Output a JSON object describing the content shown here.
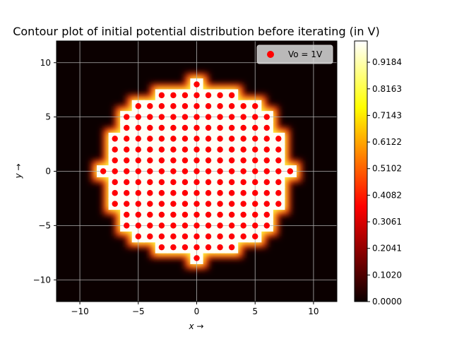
{
  "chart_data": {
    "type": "heatmap",
    "title": "Contour plot of initial potential distribution before iterating (in V)",
    "xlabel": "x →",
    "ylabel": "y →",
    "xlim": [
      -12,
      12
    ],
    "ylim": [
      -12,
      12
    ],
    "xticks": [
      -10,
      -5,
      0,
      5,
      10
    ],
    "yticks": [
      -10,
      -5,
      0,
      5,
      10
    ],
    "grid": true,
    "colormap": "hot",
    "colorbar": {
      "min": 0.0,
      "max": 1.0,
      "ticks": [
        "0.0000",
        "0.1020",
        "0.2041",
        "0.3061",
        "0.4082",
        "0.5102",
        "0.6122",
        "0.7143",
        "0.8163",
        "0.9184"
      ]
    },
    "background_value": 0.0,
    "electrode": {
      "name": "Vo = 1V",
      "potential": 1.0,
      "marker_color": "#ff0000",
      "shape": "disc",
      "radius": 8,
      "grid_spacing": 1
    },
    "legend": {
      "position": "top-right",
      "entries": [
        "Vo = 1V"
      ]
    }
  }
}
